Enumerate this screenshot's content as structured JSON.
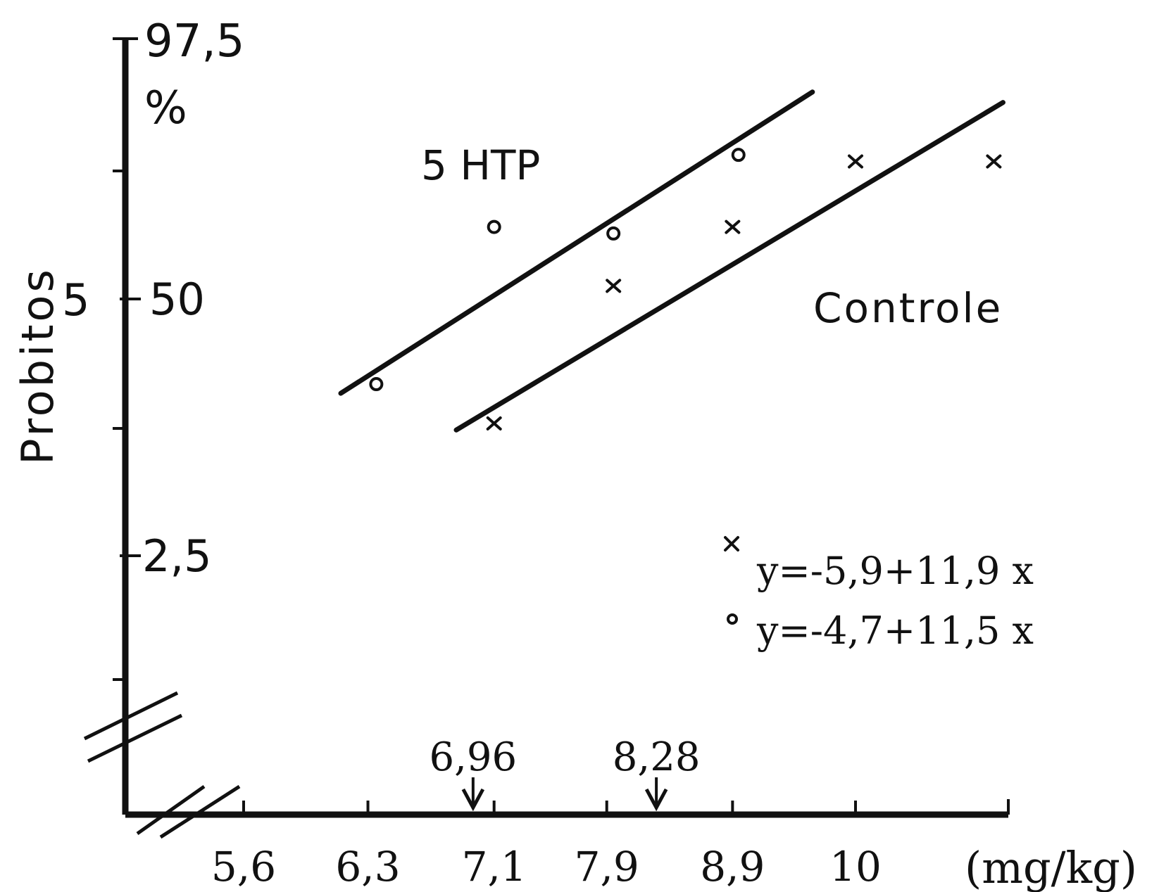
{
  "chart_data": {
    "type": "scatter",
    "ylabel": "Probitos",
    "y_scale": "probit",
    "y_ticks": [
      {
        "probit": 3.04,
        "text": "2,5"
      },
      {
        "probit": 5,
        "text": "50"
      },
      {
        "probit": 6.96,
        "text": "97,5"
      }
    ],
    "y_probit_label": "5",
    "y_percent_unit": "%",
    "x_unit": "(mg/kg)",
    "x_scale": "log",
    "x_ticks": [
      {
        "value": 5.6,
        "text": "5,6"
      },
      {
        "value": 6.3,
        "text": "6,3"
      },
      {
        "value": 7.1,
        "text": "7,1"
      },
      {
        "value": 7.9,
        "text": "7,9"
      },
      {
        "value": 8.9,
        "text": "8,9"
      },
      {
        "value": 10,
        "text": "10"
      }
    ],
    "annotations": [
      {
        "x": 6.96,
        "text": "6,96"
      },
      {
        "x": 8.28,
        "text": "8,28"
      }
    ],
    "series": [
      {
        "name": "5 HTP",
        "marker": "circle",
        "equation": "y=-4,7+11,5 x",
        "points": [
          [
            6.35,
            4.35
          ],
          [
            7.1,
            5.55
          ],
          [
            7.95,
            5.5
          ],
          [
            8.95,
            6.1
          ]
        ],
        "fit": [
          [
            6.14,
            4.28
          ],
          [
            9.6,
            6.58
          ]
        ]
      },
      {
        "name": "Controle",
        "marker": "x",
        "equation": "y=-5,9+11,9 x",
        "points": [
          [
            7.1,
            4.05
          ],
          [
            7.95,
            5.1
          ],
          [
            8.9,
            5.55
          ],
          [
            10.0,
            6.05
          ],
          [
            11.4,
            6.05
          ]
        ],
        "fit": [
          [
            6.85,
            4.0
          ],
          [
            11.5,
            6.5
          ]
        ]
      }
    ]
  },
  "labels": {
    "ylabel": "Probitos",
    "y_probit": "5",
    "y_top": "97,5",
    "y_percent": "%",
    "y_mid": "50",
    "y_low": "2,5",
    "series_5htp": "5 HTP",
    "series_controle": "Controle",
    "eq_controle": "y=-5,9+11,9 x",
    "eq_5htp": "y=-4,7+11,5 x",
    "x_unit": "(mg/kg)",
    "ann_1": "6,96",
    "ann_2": "8,28"
  },
  "colors": {
    "ink": "#111111",
    "background": "#ffffff"
  }
}
